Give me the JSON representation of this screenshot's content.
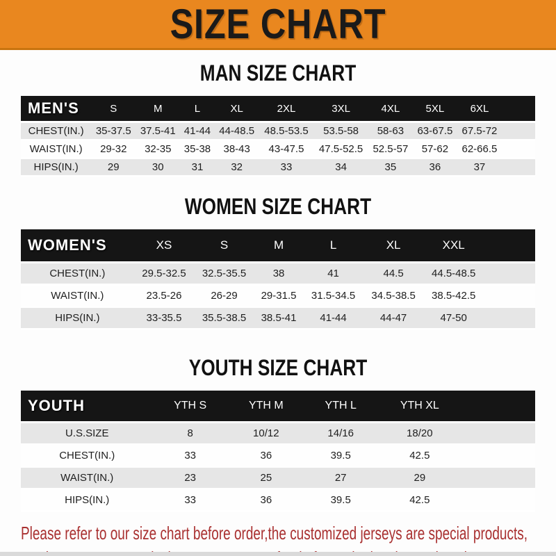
{
  "banner": {
    "title": "SIZE CHART"
  },
  "colors": {
    "banner_orange": "#E9871F",
    "header_bar_black": "#151515",
    "row_gray": "#E6E6E6",
    "row_white": "#FEFEFE",
    "footer_red": "#A93030"
  },
  "men": {
    "heading": "MAN SIZE CHART",
    "label": "MEN'S",
    "sizes": [
      "S",
      "M",
      "L",
      "XL",
      "2XL",
      "3XL",
      "4XL",
      "5XL",
      "6XL"
    ],
    "rows": [
      {
        "label": "CHEST(IN.)",
        "values": [
          "35-37.5",
          "37.5-41",
          "41-44",
          "44-48.5",
          "48.5-53.5",
          "53.5-58",
          "58-63",
          "63-67.5",
          "67.5-72"
        ]
      },
      {
        "label": "WAIST(IN.)",
        "values": [
          "29-32",
          "32-35",
          "35-38",
          "38-43",
          "43-47.5",
          "47.5-52.5",
          "52.5-57",
          "57-62",
          "62-66.5"
        ]
      },
      {
        "label": "HIPS(IN.)",
        "values": [
          "29",
          "30",
          "31",
          "32",
          "33",
          "34",
          "35",
          "36",
          "37"
        ]
      }
    ]
  },
  "women": {
    "heading": "WOMEN SIZE CHART",
    "label": "WOMEN'S",
    "sizes": [
      "XS",
      "S",
      "M",
      "L",
      "XL",
      "XXL"
    ],
    "rows": [
      {
        "label": "CHEST(IN.)",
        "values": [
          "29.5-32.5",
          "32.5-35.5",
          "38",
          "41",
          "44.5",
          "44.5-48.5"
        ]
      },
      {
        "label": "WAIST(IN.)",
        "values": [
          "23.5-26",
          "26-29",
          "29-31.5",
          "31.5-34.5",
          "34.5-38.5",
          "38.5-42.5"
        ]
      },
      {
        "label": "HIPS(IN.)",
        "values": [
          "33-35.5",
          "35.5-38.5",
          "38.5-41",
          "41-44",
          "44-47",
          "47-50"
        ]
      }
    ]
  },
  "youth": {
    "heading": "YOUTH SIZE CHART",
    "label": "YOUTH",
    "sizes": [
      "YTH S",
      "YTH M",
      "YTH L",
      "YTH XL"
    ],
    "rows": [
      {
        "label": "U.S.SIZE",
        "values": [
          "8",
          "10/12",
          "14/16",
          "18/20"
        ]
      },
      {
        "label": "CHEST(IN.)",
        "values": [
          "33",
          "36",
          "39.5",
          "42.5"
        ]
      },
      {
        "label": "WAIST(IN.)",
        "values": [
          "23",
          "25",
          "27",
          "29"
        ]
      },
      {
        "label": "HIPS(IN.)",
        "values": [
          "33",
          "36",
          "39.5",
          "42.5"
        ]
      }
    ]
  },
  "footer": {
    "line1": "Please refer to our size chart before order,the customized jerseys are special products,",
    "line2": "we don't accept cancel, change, teturn or refund after order has been placed!"
  }
}
